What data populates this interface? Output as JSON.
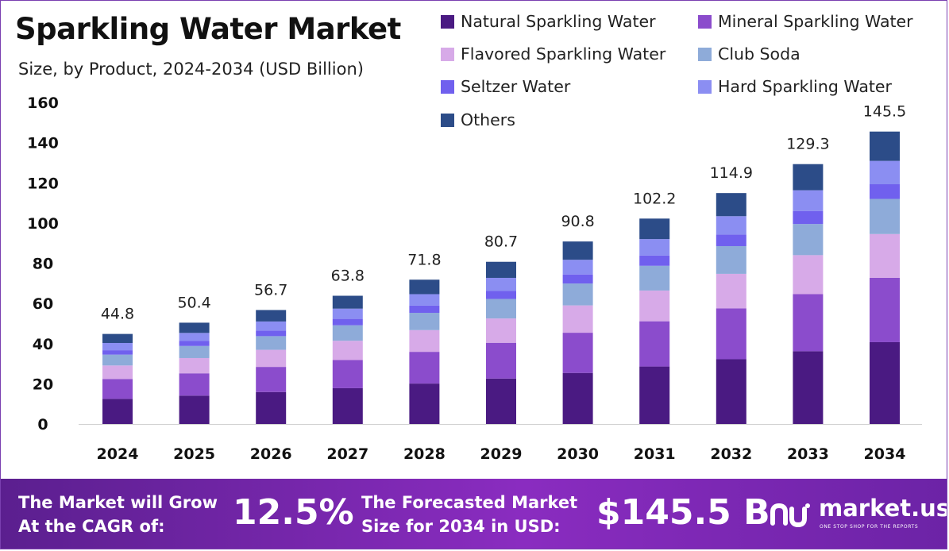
{
  "header": {
    "title": "Sparkling Water Market",
    "subtitle": "Size, by Product, 2024-2034 (USD Billion)"
  },
  "colors": {
    "series": [
      "#4a1a82",
      "#8b4ccc",
      "#d7aae8",
      "#8eabd9",
      "#7060ee",
      "#8b8ef2",
      "#2c4c88"
    ],
    "footer_bg": "#7a2ab5",
    "axis_text": "#111111"
  },
  "chart_data": {
    "type": "bar",
    "stacked": true,
    "title": "Sparkling Water Market",
    "subtitle": "Size, by Product, 2024-2034 (USD Billion)",
    "categories": [
      "2024",
      "2025",
      "2026",
      "2027",
      "2028",
      "2029",
      "2030",
      "2031",
      "2032",
      "2033",
      "2034"
    ],
    "totals": [
      44.8,
      50.4,
      56.7,
      63.8,
      71.8,
      80.7,
      90.8,
      102.2,
      114.9,
      129.3,
      145.5
    ],
    "total_labels": [
      "44.8",
      "50.4",
      "56.7",
      "63.8",
      "71.8",
      "80.7",
      "90.8",
      "102.2",
      "114.9",
      "129.3",
      "145.5"
    ],
    "series": [
      {
        "name": "Natural Sparkling Water",
        "values": [
          12.5,
          14.1,
          15.9,
          17.8,
          20.1,
          22.6,
          25.4,
          28.6,
          32.2,
          36.2,
          40.7
        ]
      },
      {
        "name": "Mineral Sparkling Water",
        "values": [
          9.9,
          11.1,
          12.5,
          14.0,
          15.8,
          17.8,
          20.0,
          22.5,
          25.3,
          28.4,
          32.0
        ]
      },
      {
        "name": "Flavored Sparkling Water",
        "values": [
          6.7,
          7.6,
          8.5,
          9.6,
          10.8,
          12.1,
          13.6,
          15.3,
          17.2,
          19.4,
          21.8
        ]
      },
      {
        "name": "Club Soda",
        "values": [
          5.4,
          6.0,
          6.8,
          7.7,
          8.6,
          9.7,
          10.9,
          12.3,
          13.8,
          15.5,
          17.5
        ]
      },
      {
        "name": "Seltzer Water",
        "values": [
          2.2,
          2.5,
          2.8,
          3.2,
          3.6,
          4.0,
          4.5,
          5.1,
          5.7,
          6.5,
          7.3
        ]
      },
      {
        "name": "Hard Sparkling Water",
        "values": [
          3.6,
          4.0,
          4.5,
          5.1,
          5.7,
          6.5,
          7.3,
          8.2,
          9.2,
          10.3,
          11.6
        ]
      },
      {
        "name": "Others",
        "values": [
          4.5,
          5.1,
          5.7,
          6.4,
          7.2,
          8.0,
          9.1,
          10.2,
          11.5,
          13.0,
          14.6
        ]
      }
    ],
    "ylim": [
      0,
      160
    ],
    "yticks": [
      "0",
      "20",
      "40",
      "60",
      "80",
      "100",
      "120",
      "140",
      "160"
    ],
    "grid": false,
    "legend_position": "top-right",
    "xlabel": "",
    "ylabel": ""
  },
  "footer": {
    "cagr_line1": "The Market will Grow",
    "cagr_line2": "At the CAGR of:",
    "cagr_value": "12.5%",
    "forecast_line1": "The Forecasted Market",
    "forecast_line2": "Size for 2034 in USD:",
    "forecast_value": "$145.5 B",
    "brand_name": "market.us",
    "brand_tagline": "ONE STOP SHOP FOR THE REPORTS"
  }
}
